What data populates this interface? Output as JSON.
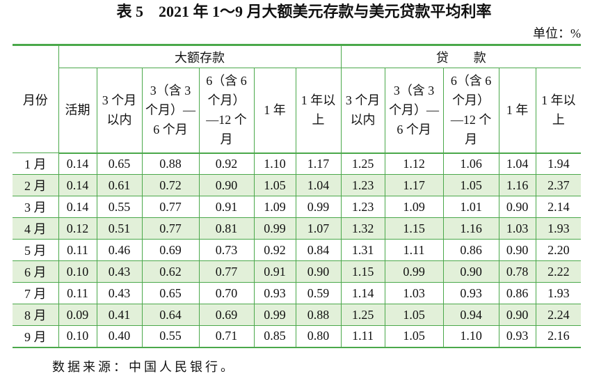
{
  "title": "表 5　2021 年 1～9 月大额美元存款与美元贷款平均利率",
  "unit": "单位：%",
  "colors": {
    "rule": "#4aa84a",
    "stripe": "#e2f0d9"
  },
  "table": {
    "month_header": "月份",
    "groups": [
      {
        "label": "大额存款",
        "columns": [
          {
            "lines": [
              "活期"
            ]
          },
          {
            "lines": [
              "3 个月",
              "以内"
            ]
          },
          {
            "lines": [
              "3（含 3",
              "个月）—",
              "6 个月"
            ]
          },
          {
            "lines": [
              "6（含 6",
              "个月）",
              "—12 个",
              "月"
            ]
          },
          {
            "lines": [
              "1 年"
            ]
          },
          {
            "lines": [
              "1 年以",
              "上"
            ]
          }
        ]
      },
      {
        "label": "贷　　款",
        "columns": [
          {
            "lines": [
              "3 个月",
              "以内"
            ]
          },
          {
            "lines": [
              "3（含 3",
              "个月）—",
              "6 个月"
            ]
          },
          {
            "lines": [
              "6（含 6",
              "个月）",
              "—12 个",
              "月"
            ]
          },
          {
            "lines": [
              "1 年"
            ]
          },
          {
            "lines": [
              "1 年以",
              "上"
            ]
          }
        ]
      }
    ],
    "rows": [
      {
        "month": "1 月",
        "values": [
          "0.14",
          "0.65",
          "0.88",
          "0.92",
          "1.10",
          "1.17",
          "1.25",
          "1.12",
          "1.06",
          "1.04",
          "1.94"
        ]
      },
      {
        "month": "2 月",
        "values": [
          "0.14",
          "0.61",
          "0.72",
          "0.90",
          "1.05",
          "1.04",
          "1.23",
          "1.17",
          "1.05",
          "1.16",
          "2.37"
        ]
      },
      {
        "month": "3 月",
        "values": [
          "0.14",
          "0.55",
          "0.77",
          "0.91",
          "1.09",
          "0.99",
          "1.23",
          "1.09",
          "1.01",
          "0.90",
          "2.14"
        ]
      },
      {
        "month": "4 月",
        "values": [
          "0.12",
          "0.51",
          "0.77",
          "0.81",
          "0.99",
          "1.07",
          "1.32",
          "1.15",
          "1.16",
          "1.03",
          "1.93"
        ]
      },
      {
        "month": "5 月",
        "values": [
          "0.11",
          "0.46",
          "0.69",
          "0.73",
          "0.92",
          "0.84",
          "1.31",
          "1.11",
          "0.86",
          "0.90",
          "2.20"
        ]
      },
      {
        "month": "6 月",
        "values": [
          "0.10",
          "0.43",
          "0.62",
          "0.77",
          "0.91",
          "0.90",
          "1.15",
          "0.99",
          "0.90",
          "0.78",
          "2.22"
        ]
      },
      {
        "month": "7 月",
        "values": [
          "0.11",
          "0.43",
          "0.65",
          "0.70",
          "0.93",
          "0.59",
          "1.14",
          "1.03",
          "0.93",
          "0.86",
          "1.93"
        ]
      },
      {
        "month": "8 月",
        "values": [
          "0.09",
          "0.41",
          "0.64",
          "0.69",
          "0.99",
          "0.88",
          "1.25",
          "1.05",
          "0.94",
          "0.90",
          "2.24"
        ]
      },
      {
        "month": "9 月",
        "values": [
          "0.10",
          "0.40",
          "0.55",
          "0.71",
          "0.85",
          "0.80",
          "1.11",
          "1.05",
          "1.10",
          "0.93",
          "2.16"
        ]
      }
    ]
  },
  "source": "数据来源：中国人民银行。"
}
